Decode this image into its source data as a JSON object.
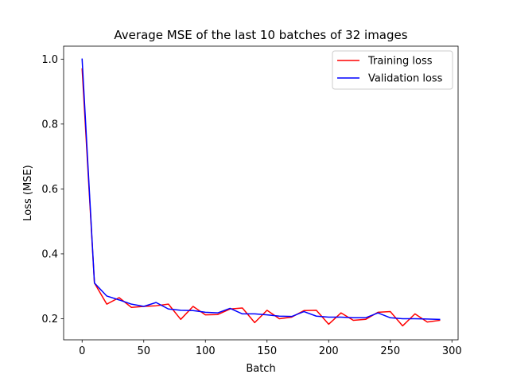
{
  "chart_data": {
    "type": "line",
    "title": "Average MSE of the last 10 batches of 32 images",
    "xlabel": "Batch",
    "ylabel": "Loss (MSE)",
    "xlim": [
      -15,
      305
    ],
    "ylim": [
      0.135,
      1.04
    ],
    "xticks": [
      0,
      50,
      100,
      150,
      200,
      250,
      300
    ],
    "yticks": [
      0.2,
      0.4,
      0.6,
      0.8,
      1.0
    ],
    "xtick_labels": [
      "0",
      "50",
      "100",
      "150",
      "200",
      "250",
      "300"
    ],
    "ytick_labels": [
      "0.2",
      "0.4",
      "0.6",
      "0.8",
      "1.0"
    ],
    "grid": false,
    "legend_position": "top-right",
    "x": [
      0,
      10,
      20,
      30,
      40,
      50,
      60,
      70,
      80,
      90,
      100,
      110,
      120,
      130,
      140,
      150,
      160,
      170,
      180,
      190,
      200,
      210,
      220,
      230,
      240,
      250,
      260,
      270,
      280,
      290
    ],
    "series": [
      {
        "name": "Training loss",
        "color": "#ff0000",
        "values": [
          0.97,
          0.31,
          0.245,
          0.265,
          0.235,
          0.238,
          0.24,
          0.245,
          0.198,
          0.238,
          0.212,
          0.213,
          0.23,
          0.233,
          0.188,
          0.226,
          0.2,
          0.205,
          0.225,
          0.226,
          0.183,
          0.218,
          0.195,
          0.198,
          0.22,
          0.222,
          0.178,
          0.215,
          0.19,
          0.195
        ]
      },
      {
        "name": "Validation loss",
        "color": "#0000ff",
        "values": [
          1.0,
          0.31,
          0.27,
          0.258,
          0.245,
          0.238,
          0.25,
          0.23,
          0.226,
          0.225,
          0.22,
          0.218,
          0.232,
          0.215,
          0.215,
          0.212,
          0.208,
          0.207,
          0.222,
          0.208,
          0.205,
          0.205,
          0.203,
          0.203,
          0.218,
          0.203,
          0.2,
          0.2,
          0.199,
          0.198
        ]
      }
    ]
  }
}
